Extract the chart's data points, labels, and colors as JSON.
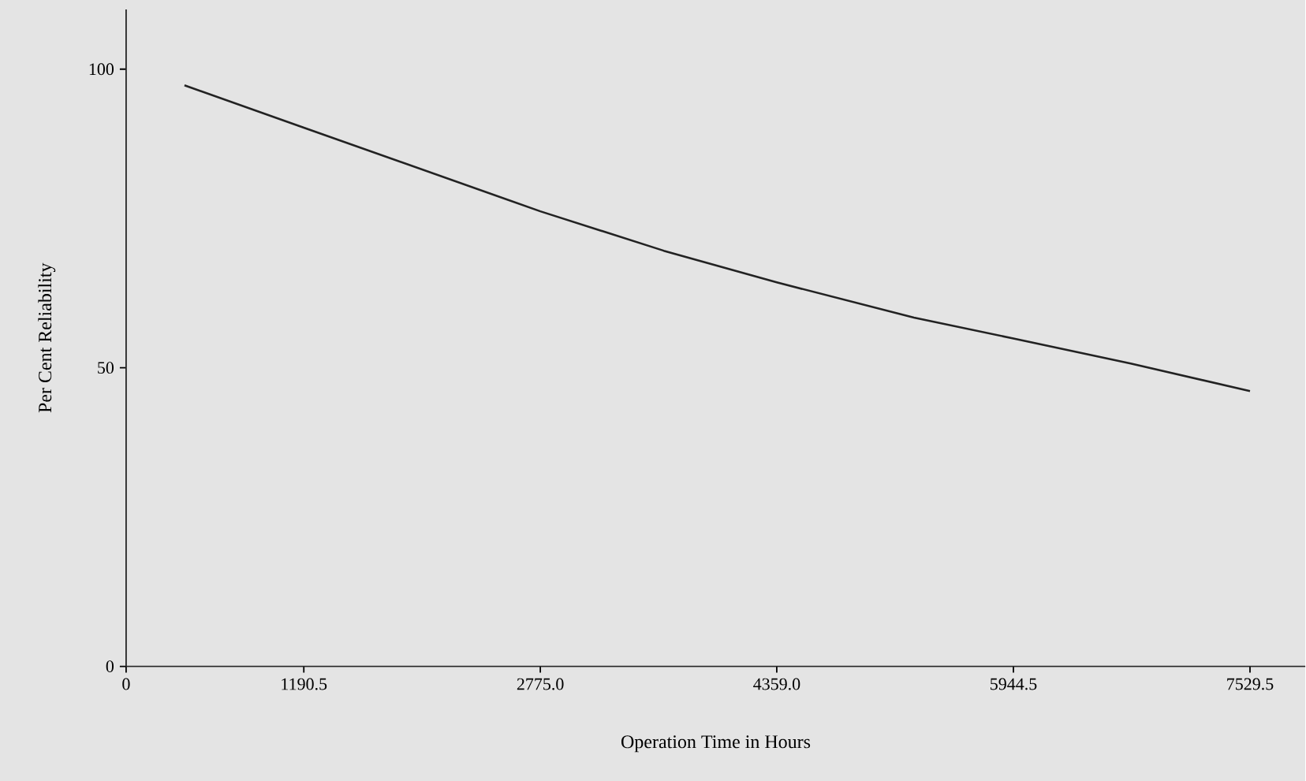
{
  "chart_data": {
    "type": "line",
    "xlabel": "Operation Time in Hours",
    "ylabel": "Per Cent Reliability",
    "x": [
      391,
      1190.5,
      2775,
      3602,
      4359,
      5278,
      5944.5,
      6730,
      7529.5
    ],
    "series": [
      {
        "color": "#222222",
        "values": [
          97.3,
          90.2,
          76.2,
          69.6,
          64.3,
          58.4,
          54.9,
          50.7,
          46.1
        ]
      }
    ],
    "xlim": [
      0,
      7900
    ],
    "ylim": [
      0,
      110
    ],
    "xticks": [
      0,
      1190.5,
      {
        "value": 2775,
        "label": "2775.0"
      },
      {
        "value": 4359,
        "label": "4359.0"
      },
      5944.5,
      7529.5
    ],
    "yticks": [
      0,
      50,
      100
    ],
    "marker": "none",
    "line_style": "solid"
  }
}
